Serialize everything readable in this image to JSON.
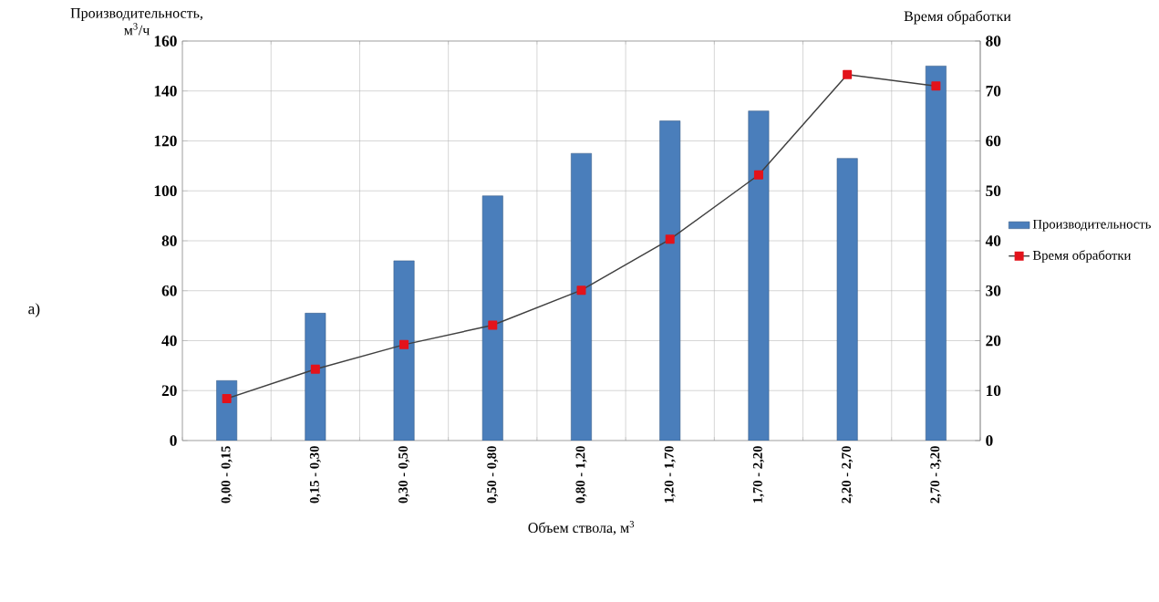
{
  "chart_data": {
    "type": "bar",
    "xlabel": "Объем ствола, м$^{3}$",
    "ylabel": "Производительность, м$^{3}$/ч",
    "y2label": "Время обработки",
    "annotations": [
      "а)"
    ],
    "categories": [
      "0,00 - 0,15",
      "0,15 - 0,30",
      "0,30 - 0,50",
      "0,50 - 0,80",
      "0,80 - 1,20",
      "1,20 - 1,70",
      "1,70 - 2,20",
      "2,20 - 2,70",
      "2,70 - 3,20"
    ],
    "series": [
      {
        "name": "Производительность",
        "color": "#4a7ebb",
        "values": [
          24,
          51,
          72,
          98,
          115,
          128,
          132,
          113,
          150
        ]
      },
      {
        "name": "Время обработки",
        "type": "line",
        "axis": "y2",
        "color": "#e3131b",
        "values": [
          8.4,
          14.3,
          19.2,
          23.1,
          30.1,
          40.3,
          53.2,
          73.3,
          71.0
        ]
      }
    ],
    "ylim": [
      0,
      160
    ],
    "yticks": [
      0,
      20,
      40,
      60,
      80,
      100,
      120,
      140,
      160
    ],
    "y2lim": [
      0,
      80
    ],
    "y2ticks": [
      0,
      10,
      20,
      30,
      40,
      50,
      60,
      70,
      80
    ],
    "grid": true,
    "legend": "right",
    "marker": "square"
  }
}
